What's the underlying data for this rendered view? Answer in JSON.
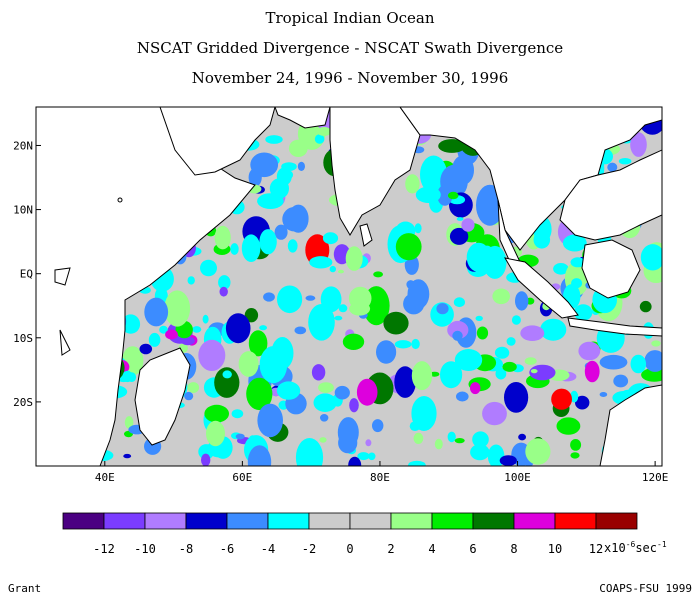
{
  "header": {
    "line1": "Tropical Indian Ocean",
    "line2": "NSCAT Gridded Divergence - NSCAT Swath Divergence",
    "line3": "November 24, 1996 - November 30, 1996"
  },
  "map": {
    "lon_range": [
      30,
      121
    ],
    "lat_range": [
      -30,
      26
    ],
    "x_ticks": [
      {
        "lon": 40,
        "label": "40E"
      },
      {
        "lon": 60,
        "label": "60E"
      },
      {
        "lon": 80,
        "label": "80E"
      },
      {
        "lon": 100,
        "label": "100E"
      },
      {
        "lon": 120,
        "label": "120E"
      }
    ],
    "y_ticks": [
      {
        "lat": 20,
        "label": "20N"
      },
      {
        "lat": 10,
        "label": "10N"
      },
      {
        "lat": 0,
        "label": "EQ"
      },
      {
        "lat": -10,
        "label": "10S"
      },
      {
        "lat": -20,
        "label": "20S"
      }
    ],
    "background_color": "#cccccc",
    "land_color": "#ffffff"
  },
  "colorbar": {
    "colors": [
      "#4b0082",
      "#7b3cff",
      "#b07cff",
      "#0000cc",
      "#3c8cff",
      "#00ffff",
      "#cccccc",
      "#cccccc",
      "#99ff88",
      "#00ee00",
      "#007700",
      "#dd00dd",
      "#ff0000",
      "#990000"
    ],
    "labels": [
      "-12",
      "-10",
      "-8",
      "-6",
      "-4",
      "-2",
      "0",
      "2",
      "4",
      "6",
      "8",
      "10",
      "12"
    ],
    "units_prefix": "x10",
    "units_exp": "-6",
    "units_unit": "sec",
    "units_exp2": "-1"
  },
  "footer": {
    "left": "Grant",
    "right": "COAPS-FSU 1999"
  }
}
